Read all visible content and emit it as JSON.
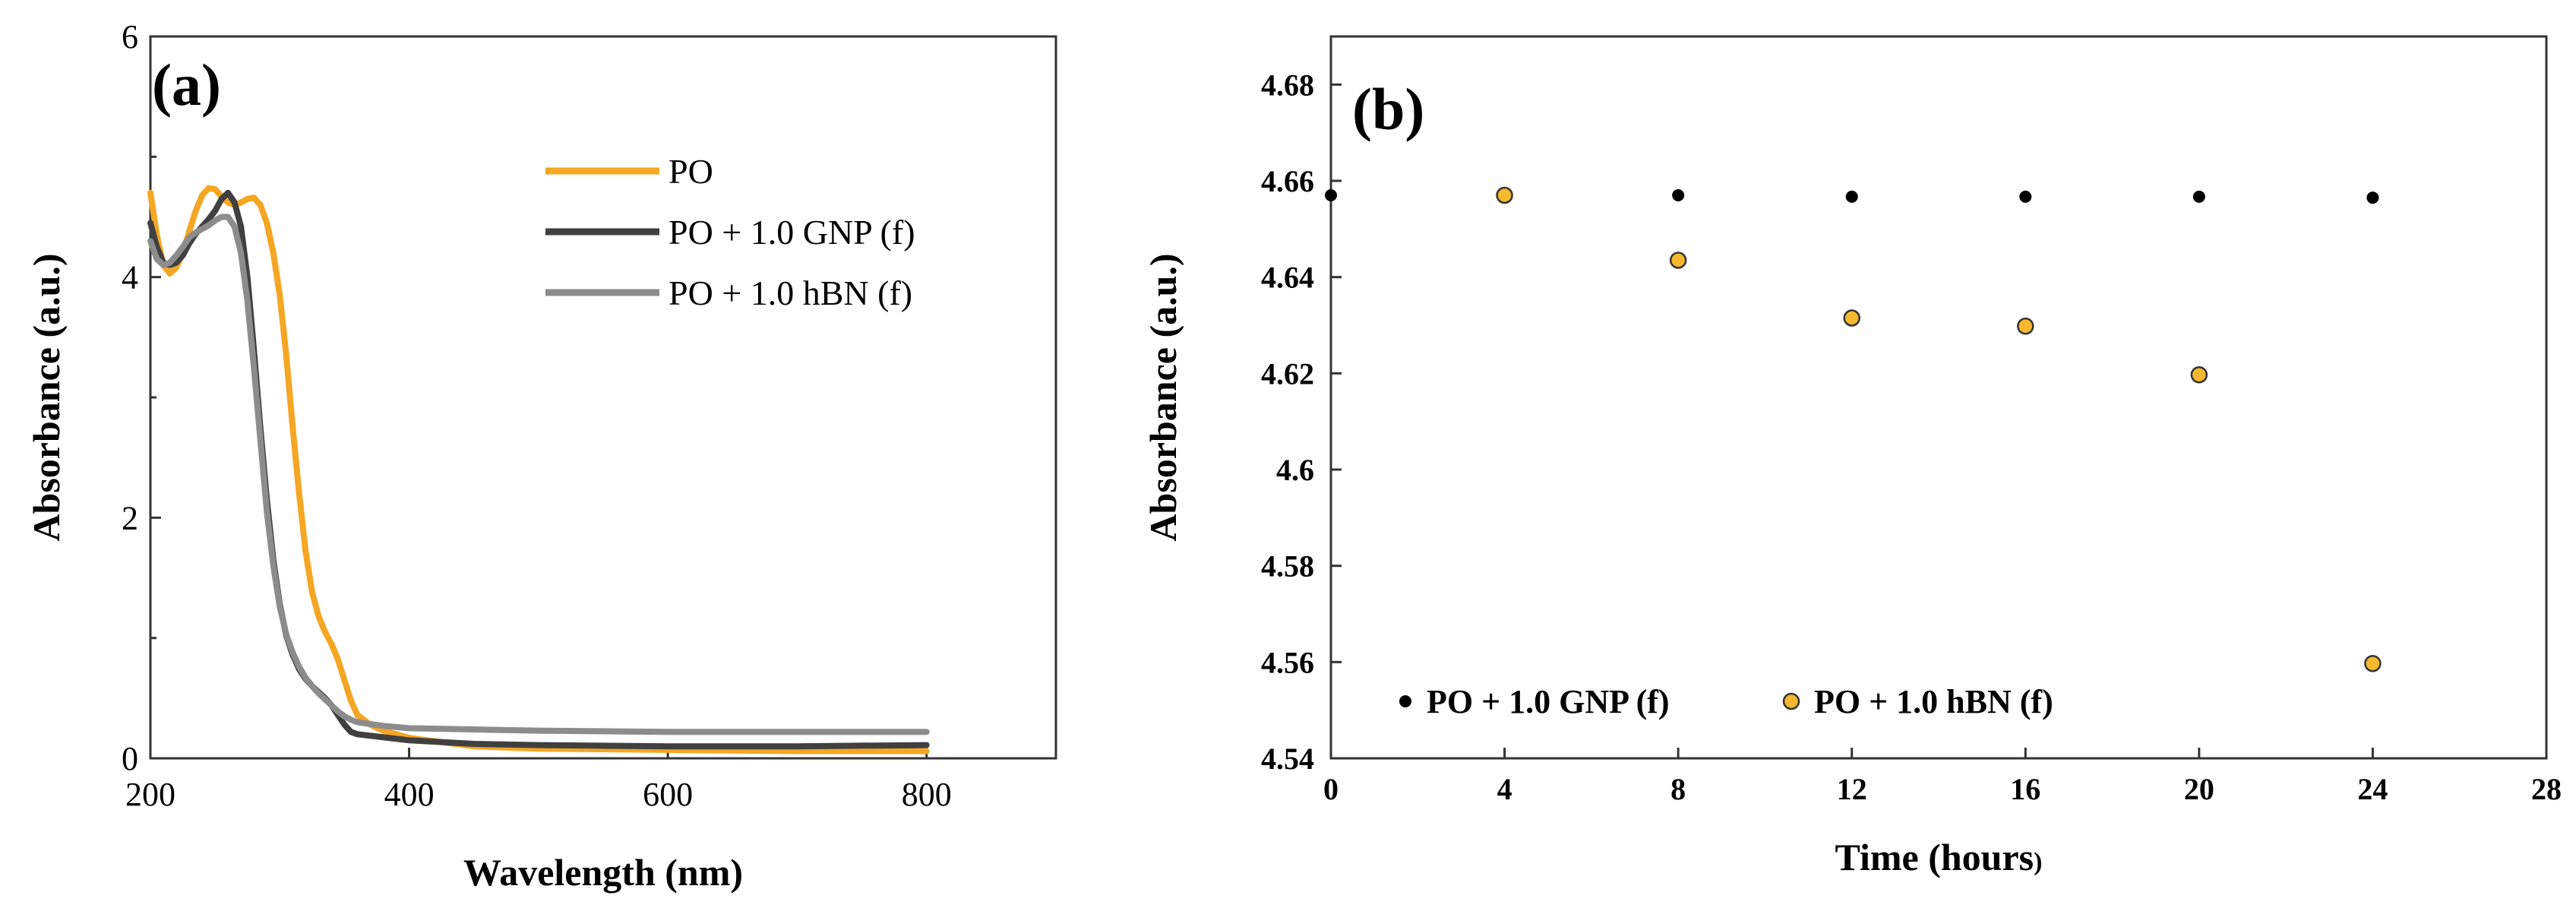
{
  "chart_data": [
    {
      "panel": "(a)",
      "type": "line",
      "title": "",
      "xlabel": "Wavelength (nm)",
      "ylabel": "Absorbance (a.u.)",
      "xlim": [
        200,
        900
      ],
      "ylim": [
        0,
        6
      ],
      "xticks": [
        200,
        400,
        600,
        800
      ],
      "yticks": [
        0,
        2,
        4,
        6
      ],
      "x_tick_labels": [
        "200",
        "400",
        "600",
        "800"
      ],
      "y_tick_labels": [
        "0",
        "2",
        "4",
        "6"
      ],
      "grid": false,
      "legend_position": "top-right",
      "series": [
        {
          "name": "PO",
          "color": "#F5A623",
          "points": [
            [
              200,
              4.7
            ],
            [
              205,
              4.35
            ],
            [
              210,
              4.1
            ],
            [
              215,
              4.03
            ],
            [
              220,
              4.08
            ],
            [
              225,
              4.2
            ],
            [
              230,
              4.38
            ],
            [
              235,
              4.55
            ],
            [
              240,
              4.68
            ],
            [
              245,
              4.74
            ],
            [
              250,
              4.73
            ],
            [
              255,
              4.67
            ],
            [
              260,
              4.62
            ],
            [
              265,
              4.6
            ],
            [
              270,
              4.62
            ],
            [
              275,
              4.65
            ],
            [
              280,
              4.66
            ],
            [
              285,
              4.6
            ],
            [
              290,
              4.45
            ],
            [
              295,
              4.2
            ],
            [
              300,
              3.85
            ],
            [
              305,
              3.35
            ],
            [
              310,
              2.75
            ],
            [
              315,
              2.2
            ],
            [
              320,
              1.72
            ],
            [
              325,
              1.38
            ],
            [
              330,
              1.18
            ],
            [
              335,
              1.05
            ],
            [
              340,
              0.95
            ],
            [
              345,
              0.82
            ],
            [
              350,
              0.65
            ],
            [
              355,
              0.48
            ],
            [
              360,
              0.36
            ],
            [
              370,
              0.28
            ],
            [
              380,
              0.23
            ],
            [
              400,
              0.17
            ],
            [
              450,
              0.1
            ],
            [
              500,
              0.08
            ],
            [
              600,
              0.07
            ],
            [
              700,
              0.06
            ],
            [
              800,
              0.06
            ]
          ]
        },
        {
          "name": "PO + 1.0 GNP (f)",
          "color": "#404040",
          "points": [
            [
              200,
              4.45
            ],
            [
              205,
              4.25
            ],
            [
              210,
              4.12
            ],
            [
              215,
              4.1
            ],
            [
              220,
              4.12
            ],
            [
              225,
              4.18
            ],
            [
              230,
              4.28
            ],
            [
              235,
              4.36
            ],
            [
              240,
              4.42
            ],
            [
              245,
              4.48
            ],
            [
              250,
              4.55
            ],
            [
              255,
              4.65
            ],
            [
              260,
              4.7
            ],
            [
              265,
              4.62
            ],
            [
              270,
              4.42
            ],
            [
              275,
              4.0
            ],
            [
              280,
              3.4
            ],
            [
              285,
              2.75
            ],
            [
              290,
              2.15
            ],
            [
              295,
              1.65
            ],
            [
              300,
              1.28
            ],
            [
              305,
              1.02
            ],
            [
              310,
              0.86
            ],
            [
              315,
              0.74
            ],
            [
              320,
              0.66
            ],
            [
              325,
              0.6
            ],
            [
              330,
              0.55
            ],
            [
              335,
              0.5
            ],
            [
              340,
              0.44
            ],
            [
              345,
              0.36
            ],
            [
              350,
              0.28
            ],
            [
              355,
              0.22
            ],
            [
              360,
              0.2
            ],
            [
              400,
              0.15
            ],
            [
              450,
              0.12
            ],
            [
              500,
              0.11
            ],
            [
              600,
              0.1
            ],
            [
              700,
              0.1
            ],
            [
              800,
              0.11
            ]
          ]
        },
        {
          "name": "PO + 1.0 hBN (f)",
          "color": "#8C8C8C",
          "points": [
            [
              200,
              4.3
            ],
            [
              205,
              4.15
            ],
            [
              210,
              4.1
            ],
            [
              215,
              4.12
            ],
            [
              220,
              4.18
            ],
            [
              225,
              4.25
            ],
            [
              230,
              4.33
            ],
            [
              235,
              4.37
            ],
            [
              240,
              4.4
            ],
            [
              245,
              4.43
            ],
            [
              250,
              4.47
            ],
            [
              255,
              4.5
            ],
            [
              260,
              4.5
            ],
            [
              265,
              4.42
            ],
            [
              270,
              4.2
            ],
            [
              275,
              3.8
            ],
            [
              280,
              3.25
            ],
            [
              285,
              2.65
            ],
            [
              290,
              2.05
            ],
            [
              295,
              1.6
            ],
            [
              300,
              1.26
            ],
            [
              305,
              1.03
            ],
            [
              310,
              0.88
            ],
            [
              315,
              0.76
            ],
            [
              320,
              0.67
            ],
            [
              325,
              0.6
            ],
            [
              330,
              0.54
            ],
            [
              335,
              0.49
            ],
            [
              340,
              0.44
            ],
            [
              345,
              0.39
            ],
            [
              350,
              0.35
            ],
            [
              355,
              0.32
            ],
            [
              360,
              0.3
            ],
            [
              380,
              0.27
            ],
            [
              400,
              0.25
            ],
            [
              450,
              0.24
            ],
            [
              500,
              0.23
            ],
            [
              600,
              0.22
            ],
            [
              700,
              0.22
            ],
            [
              800,
              0.22
            ]
          ]
        }
      ]
    },
    {
      "panel": "(b)",
      "type": "scatter",
      "title": "",
      "xlabel": "Time (hours",
      "xlabel_suffix": ")",
      "ylabel": "Absorbance (a.u.)",
      "xlim": [
        0,
        28
      ],
      "ylim": [
        4.54,
        4.69
      ],
      "xticks": [
        0,
        4,
        8,
        12,
        16,
        20,
        24,
        28
      ],
      "yticks": [
        4.54,
        4.56,
        4.58,
        4.6,
        4.62,
        4.64,
        4.66,
        4.68
      ],
      "x_tick_labels": [
        "0",
        "4",
        "8",
        "12",
        "16",
        "20",
        "24",
        "28"
      ],
      "y_tick_labels": [
        "4.54",
        "4.56",
        "4.58",
        "4.6",
        "4.62",
        "4.64",
        "4.66",
        "4.68"
      ],
      "grid": false,
      "legend_position": "bottom-left",
      "series": [
        {
          "name": "PO + 1.0 GNP (f)",
          "color": "#000000",
          "x": [
            0,
            8,
            12,
            16,
            20,
            24
          ],
          "y": [
            4.657,
            4.657,
            4.6567,
            4.6567,
            4.6567,
            4.6565
          ]
        },
        {
          "name": "PO + 1.0 hBN (f)",
          "color": "#F5B82E",
          "x": [
            4,
            8,
            12,
            16,
            20,
            24
          ],
          "y": [
            4.657,
            4.6435,
            4.6315,
            4.6298,
            4.6197,
            4.5597
          ]
        }
      ]
    }
  ]
}
